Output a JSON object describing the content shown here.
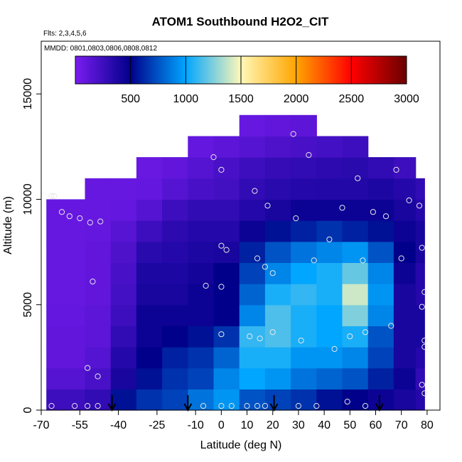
{
  "chart_data": {
    "type": "heatmap",
    "title": "ATOM1 Southbound H2O2_CIT",
    "flights_label": "Flts: 2,3,4,5,6",
    "dates_label": "MMDD: 0801,0803,0806,0808,0812",
    "xlabel": "Latitude (deg N)",
    "ylabel": "Altitude (m)",
    "xlim": [
      -70,
      85
    ],
    "ylim": [
      0,
      17500
    ],
    "x_ticks": [
      "-70",
      "-55",
      "-40",
      "-25",
      "-10",
      "0",
      "10",
      "20",
      "30",
      "40",
      "50",
      "60",
      "70",
      "80"
    ],
    "y_ticks": [
      "0",
      "5000",
      "10000",
      "15000"
    ],
    "colorbar": {
      "min": 0,
      "max": 3000,
      "ticks": [
        "500",
        "1000",
        "1500",
        "2000",
        "2500",
        "3000"
      ],
      "colors": [
        "#7a1cf0",
        "#00008a",
        "#00a6ff",
        "#fff8b8",
        "#ffa500",
        "#ff0000",
        "#6a0000"
      ]
    },
    "lat_bands": [
      -68,
      -58,
      -48,
      -38,
      -28,
      -18,
      -8,
      2,
      12,
      22,
      32,
      42,
      52,
      62,
      72,
      79
    ],
    "alt_bands": [
      0,
      1000,
      2000,
      3000,
      4000,
      5000,
      6000,
      7000,
      8000,
      9000,
      10000,
      11000,
      12000,
      13000
    ],
    "values": [
      [
        250,
        250,
        300,
        550,
        650,
        700,
        850,
        950,
        750,
        700,
        650,
        550,
        500,
        450,
        400,
        350
      ],
      [
        150,
        150,
        200,
        400,
        550,
        650,
        700,
        900,
        1000,
        950,
        850,
        800,
        750,
        600,
        450,
        300
      ],
      [
        100,
        100,
        150,
        350,
        500,
        600,
        650,
        800,
        1050,
        1050,
        950,
        950,
        900,
        700,
        400,
        350
      ],
      [
        100,
        100,
        120,
        300,
        450,
        500,
        550,
        650,
        1100,
        1150,
        1050,
        1000,
        1050,
        750,
        400,
        400
      ],
      [
        90,
        90,
        120,
        250,
        450,
        450,
        450,
        500,
        900,
        1150,
        1050,
        1000,
        1250,
        900,
        400,
        400
      ],
      [
        80,
        80,
        100,
        220,
        400,
        400,
        450,
        500,
        800,
        1050,
        1100,
        1050,
        1400,
        950,
        400,
        350
      ],
      [
        80,
        80,
        100,
        200,
        380,
        380,
        420,
        500,
        700,
        900,
        1000,
        1050,
        1200,
        900,
        450,
        350
      ],
      [
        80,
        80,
        100,
        180,
        330,
        350,
        380,
        400,
        600,
        750,
        850,
        900,
        950,
        750,
        500,
        400
      ],
      [
        80,
        80,
        90,
        140,
        250,
        320,
        350,
        350,
        450,
        550,
        600,
        650,
        600,
        550,
        450,
        400
      ],
      [
        80,
        80,
        80,
        90,
        150,
        250,
        300,
        300,
        350,
        400,
        450,
        450,
        450,
        450,
        400,
        350
      ],
      [
        null,
        null,
        80,
        80,
        90,
        150,
        200,
        230,
        300,
        330,
        350,
        360,
        360,
        380,
        350,
        300
      ],
      [
        null,
        null,
        null,
        null,
        70,
        100,
        150,
        200,
        250,
        280,
        300,
        320,
        330,
        300,
        250,
        null
      ],
      [
        null,
        null,
        null,
        null,
        null,
        null,
        90,
        120,
        150,
        180,
        200,
        220,
        250,
        null,
        null,
        null
      ],
      [
        null,
        null,
        null,
        null,
        null,
        null,
        null,
        null,
        80,
        100,
        120,
        null,
        null,
        null,
        null,
        null
      ]
    ],
    "observations": [
      {
        "lat": -66,
        "alt": 10150
      },
      {
        "lat": -65,
        "alt": 10150
      },
      {
        "lat": -62,
        "alt": 9400
      },
      {
        "lat": -59,
        "alt": 9200
      },
      {
        "lat": -55,
        "alt": 9100
      },
      {
        "lat": -51,
        "alt": 8900
      },
      {
        "lat": -47,
        "alt": 8950
      },
      {
        "lat": -50,
        "alt": 6100
      },
      {
        "lat": -52,
        "alt": 2000
      },
      {
        "lat": -48,
        "alt": 1600
      },
      {
        "lat": -66,
        "alt": 200
      },
      {
        "lat": -57,
        "alt": 200
      },
      {
        "lat": -52,
        "alt": 200
      },
      {
        "lat": -48,
        "alt": 200
      },
      {
        "lat": -3,
        "alt": 12000
      },
      {
        "lat": 0,
        "alt": 11400
      },
      {
        "lat": 0,
        "alt": 7800
      },
      {
        "lat": 2,
        "alt": 7600
      },
      {
        "lat": -6,
        "alt": 5900
      },
      {
        "lat": 0,
        "alt": 5850
      },
      {
        "lat": 0,
        "alt": 3600
      },
      {
        "lat": -7,
        "alt": 200
      },
      {
        "lat": 0,
        "alt": 200
      },
      {
        "lat": 4,
        "alt": 200
      },
      {
        "lat": 10,
        "alt": 200
      },
      {
        "lat": 14,
        "alt": 200
      },
      {
        "lat": 17,
        "alt": 200
      },
      {
        "lat": 13,
        "alt": 10400
      },
      {
        "lat": 18,
        "alt": 9700
      },
      {
        "lat": 14,
        "alt": 7200
      },
      {
        "lat": 17,
        "alt": 6800
      },
      {
        "lat": 20,
        "alt": 6500
      },
      {
        "lat": 11,
        "alt": 3500
      },
      {
        "lat": 15,
        "alt": 3400
      },
      {
        "lat": 20,
        "alt": 3700
      },
      {
        "lat": 28,
        "alt": 13100
      },
      {
        "lat": 34,
        "alt": 12100
      },
      {
        "lat": 29,
        "alt": 9100
      },
      {
        "lat": 36,
        "alt": 7100
      },
      {
        "lat": 42,
        "alt": 8100
      },
      {
        "lat": 47,
        "alt": 9600
      },
      {
        "lat": 31,
        "alt": 3300
      },
      {
        "lat": 44,
        "alt": 2900
      },
      {
        "lat": 30,
        "alt": 200
      },
      {
        "lat": 37,
        "alt": 200
      },
      {
        "lat": 53,
        "alt": 11000
      },
      {
        "lat": 59,
        "alt": 9400
      },
      {
        "lat": 64,
        "alt": 9200
      },
      {
        "lat": 55,
        "alt": 7100
      },
      {
        "lat": 50,
        "alt": 3500
      },
      {
        "lat": 56,
        "alt": 3700
      },
      {
        "lat": 49,
        "alt": 400
      },
      {
        "lat": 56,
        "alt": 200
      },
      {
        "lat": 68,
        "alt": 11400
      },
      {
        "lat": 73,
        "alt": 9950
      },
      {
        "lat": 77,
        "alt": 9700
      },
      {
        "lat": 70,
        "alt": 7200
      },
      {
        "lat": 78,
        "alt": 7700
      },
      {
        "lat": 79,
        "alt": 5600
      },
      {
        "lat": 78,
        "alt": 4900
      },
      {
        "lat": 66,
        "alt": 4000
      },
      {
        "lat": 79,
        "alt": 3300
      },
      {
        "lat": 79,
        "alt": 3000
      },
      {
        "lat": 78,
        "alt": 1200
      },
      {
        "lat": 79,
        "alt": 800
      }
    ],
    "arrows_lat": [
      -42.5,
      -13,
      20.5,
      61.5
    ]
  }
}
